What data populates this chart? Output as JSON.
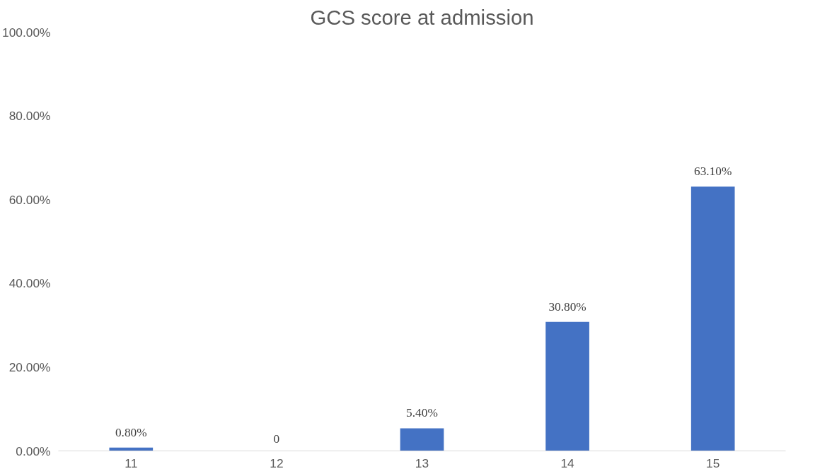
{
  "chart_data": {
    "type": "bar",
    "title": "GCS score at admission",
    "categories": [
      "11",
      "12",
      "13",
      "14",
      "15"
    ],
    "values": [
      0.8,
      0,
      5.4,
      30.8,
      63.1
    ],
    "value_labels": [
      "0.80%",
      "0",
      "5.40%",
      "30.80%",
      "63.10%"
    ],
    "color": "#4472c4",
    "ylim": [
      0,
      100
    ],
    "yticks": [
      {
        "value": 0,
        "label": "0.00%"
      },
      {
        "value": 20,
        "label": "20.00%"
      },
      {
        "value": 40,
        "label": "40.00%"
      },
      {
        "value": 60,
        "label": "60.00%"
      },
      {
        "value": 80,
        "label": "80.00%"
      },
      {
        "value": 100,
        "label": "100.00%"
      }
    ],
    "grid": false
  }
}
